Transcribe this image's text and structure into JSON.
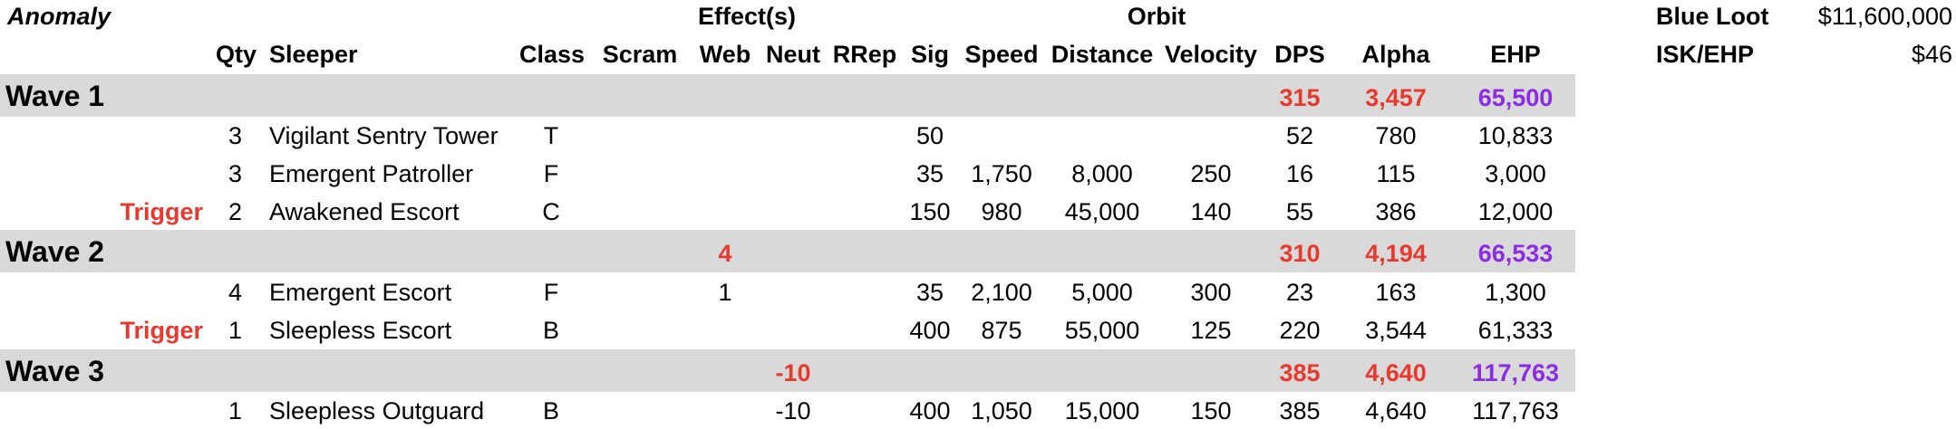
{
  "colors": {
    "band": "#d9d9d9",
    "red": "#e8392e",
    "purple": "#8b2be2",
    "text": "#000000"
  },
  "header": {
    "anomaly": "Anomaly",
    "effects": "Effect(s)",
    "orbit": "Orbit",
    "cols": {
      "qty": "Qty",
      "sleeper": "Sleeper",
      "class": "Class",
      "scram": "Scram",
      "web": "Web",
      "neut": "Neut",
      "rrep": "RRep",
      "sig": "Sig",
      "speed": "Speed",
      "distance": "Distance",
      "velocity": "Velocity",
      "dps": "DPS",
      "alpha": "Alpha",
      "ehp": "EHP"
    }
  },
  "summary": {
    "blue_loot_label": "Blue Loot",
    "blue_loot_value": "$11,600,000",
    "isk_ehp_label": "ISK/EHP",
    "isk_ehp_value": "$46"
  },
  "waves": [
    {
      "name": "Wave 1",
      "web": "",
      "neut": "",
      "dps": "315",
      "alpha": "3,457",
      "ehp": "65,500",
      "rows": [
        {
          "trigger": "",
          "qty": "3",
          "sleeper": "Vigilant Sentry Tower",
          "class": "T",
          "web": "",
          "neut": "",
          "sig": "50",
          "speed": "",
          "distance": "",
          "velocity": "",
          "dps": "52",
          "alpha": "780",
          "ehp": "10,833"
        },
        {
          "trigger": "",
          "qty": "3",
          "sleeper": "Emergent Patroller",
          "class": "F",
          "web": "",
          "neut": "",
          "sig": "35",
          "speed": "1,750",
          "distance": "8,000",
          "velocity": "250",
          "dps": "16",
          "alpha": "115",
          "ehp": "3,000"
        },
        {
          "trigger": "Trigger",
          "qty": "2",
          "sleeper": "Awakened Escort",
          "class": "C",
          "web": "",
          "neut": "",
          "sig": "150",
          "speed": "980",
          "distance": "45,000",
          "velocity": "140",
          "dps": "55",
          "alpha": "386",
          "ehp": "12,000"
        }
      ]
    },
    {
      "name": "Wave 2",
      "web": "4",
      "neut": "",
      "dps": "310",
      "alpha": "4,194",
      "ehp": "66,533",
      "rows": [
        {
          "trigger": "",
          "qty": "4",
          "sleeper": "Emergent Escort",
          "class": "F",
          "web": "1",
          "neut": "",
          "sig": "35",
          "speed": "2,100",
          "distance": "5,000",
          "velocity": "300",
          "dps": "23",
          "alpha": "163",
          "ehp": "1,300"
        },
        {
          "trigger": "Trigger",
          "qty": "1",
          "sleeper": "Sleepless Escort",
          "class": "B",
          "web": "",
          "neut": "",
          "sig": "400",
          "speed": "875",
          "distance": "55,000",
          "velocity": "125",
          "dps": "220",
          "alpha": "3,544",
          "ehp": "61,333"
        }
      ]
    },
    {
      "name": "Wave 3",
      "web": "",
      "neut": "-10",
      "dps": "385",
      "alpha": "4,640",
      "ehp": "117,763",
      "rows": [
        {
          "trigger": "",
          "qty": "1",
          "sleeper": "Sleepless Outguard",
          "class": "B",
          "web": "",
          "neut": "-10",
          "sig": "400",
          "speed": "1,050",
          "distance": "15,000",
          "velocity": "150",
          "dps": "385",
          "alpha": "4,640",
          "ehp": "117,763"
        }
      ]
    }
  ]
}
